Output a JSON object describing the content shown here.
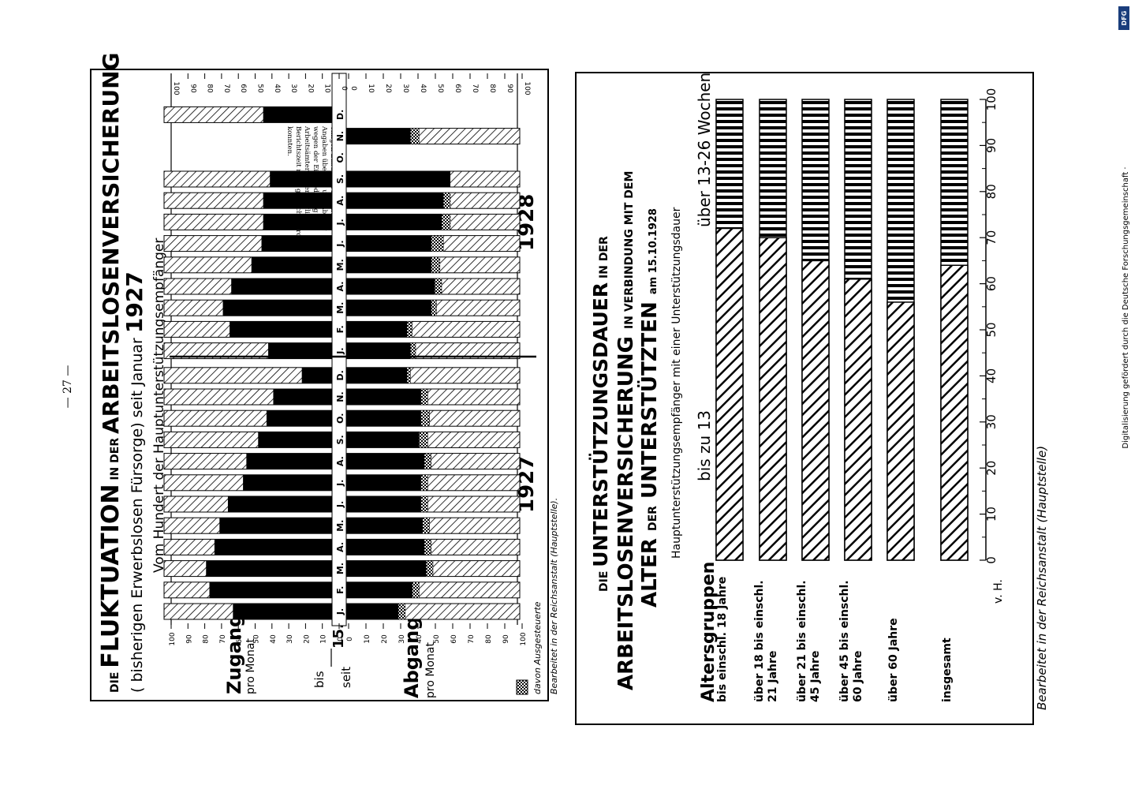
{
  "page": {
    "number": "— 27 —",
    "digitization_note": "Digitalisierung gefördert durch die Deutsche Forschungsgemeinschaft ·",
    "dfg_logo": "DFG"
  },
  "chart_data": [
    {
      "type": "bar",
      "title_parts": [
        "DIE",
        "FLUKTUATION",
        "IN DER",
        "ARBEITSLOSENVERSICHERUNG"
      ],
      "subtitle": "( bisherigen Erwerbslosen Fürsorge)",
      "subtitle_tail": "seit Januar",
      "year": "1927",
      "description": "Vom Hundert der Hauptunterstützungsempfänger",
      "zugang_label": "Zugang",
      "zugang_sub": "pro Monat",
      "abgang_label": "Abgang",
      "abgang_sub": "pro Monat",
      "bis_label": "bis",
      "seit_label": "seit",
      "cut_day": "15.",
      "year_1927": "1927",
      "year_1928": "1928",
      "legend_hatch": "davon Ausgesteuerte",
      "source": "Bearbeitet in der Reichsanstalt (Hauptstelle).",
      "note": "Darstellungen fallen aus, da von einigen Landesarbeitsämtern Angaben über Zu- und Abgang wegen der Eingliederung der Arbeitsämter in der fraglichen Berichtszeit nicht gemacht werden konnten.",
      "ticks_upper": [
        "100",
        "90",
        "80",
        "70",
        "60",
        "50",
        "40",
        "30",
        "20",
        "10",
        "0"
      ],
      "ticks_lower": [
        "0",
        "10",
        "20",
        "30",
        "40",
        "50",
        "60",
        "70",
        "80",
        "90",
        "100"
      ],
      "months": [
        "J.",
        "F.",
        "M.",
        "A.",
        "M.",
        "J.",
        "J.",
        "A.",
        "S.",
        "O.",
        "N.",
        "D.",
        "J.",
        "F.",
        "M.",
        "A.",
        "M.",
        "J.",
        "J.",
        "A.",
        "S.",
        "O.",
        "N.",
        "D."
      ],
      "xlim": [
        0,
        100
      ],
      "series": [
        {
          "name": "bis",
          "values": [
            41,
            27,
            25,
            30,
            33,
            38,
            47,
            49,
            56,
            61,
            65,
            82,
            62,
            39,
            35,
            40,
            52,
            58,
            59,
            59,
            63,
            null,
            null,
            59
          ]
        },
        {
          "name": "seit",
          "values": [
            30,
            38,
            46,
            45,
            44,
            43,
            43,
            45,
            42,
            43,
            43,
            35,
            37,
            35,
            49,
            51,
            49,
            49,
            55,
            56,
            60,
            null,
            37,
            null
          ]
        },
        {
          "name": "davon Ausgesteuerte",
          "values": [
            4,
            4,
            4,
            4,
            4,
            4,
            4,
            4,
            5,
            5,
            4,
            2,
            3,
            3,
            3,
            4,
            5,
            7,
            5,
            4,
            0,
            null,
            5,
            null
          ]
        }
      ]
    },
    {
      "type": "bar",
      "title_parts": [
        "DIE",
        "UNTERSTÜTZUNGSDAUER",
        "IN DER"
      ],
      "title_line2": "ARBEITSLOSENVERSICHERUNG",
      "title_line2_tail": "IN VERBINDUNG MIT DEM",
      "title_line3": [
        "ALTER",
        "DER",
        "UNTERSTÜTZTEN"
      ],
      "title_date": "am 15.10.1928",
      "description": "Hauptunterstützungsempfänger mit einer Unterstützungsdauer",
      "legend_a": "bis zu 13",
      "legend_b": "über 13-26 Wochen",
      "group_header": "Altersgruppen",
      "unit": "v. H.",
      "source": "Bearbeitet in der Reichsanstalt (Hauptstelle)",
      "xlim": [
        0,
        100
      ],
      "ticks": [
        "0",
        "10",
        "20",
        "30",
        "40",
        "50",
        "60",
        "70",
        "80",
        "90",
        "100"
      ],
      "categories": [
        [
          "bis einschl. 18 Jahre"
        ],
        [
          "über 18 bis einschl.",
          "21 Jahre"
        ],
        [
          "über 21 bis einschl.",
          "45 Jahre"
        ],
        [
          "über 45 bis einschl.",
          "60 Jahre"
        ],
        [
          "über 60 Jahre"
        ],
        [
          "insgesamt"
        ]
      ],
      "series": [
        {
          "name": "bis zu 13",
          "values": [
            72,
            70,
            65,
            61,
            56,
            64
          ]
        },
        {
          "name": "über 13-26 Wochen",
          "values": [
            28,
            30,
            35,
            39,
            44,
            36
          ]
        }
      ]
    }
  ]
}
